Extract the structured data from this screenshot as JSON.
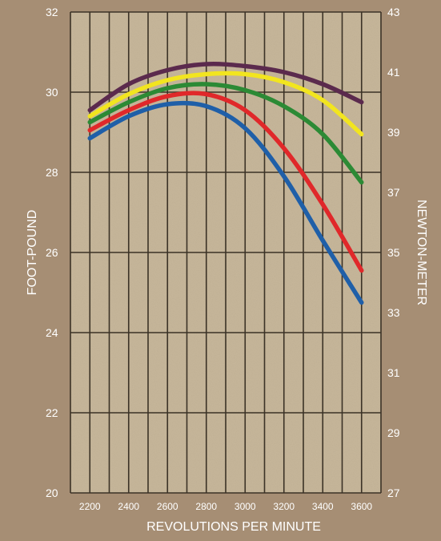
{
  "chart_data": {
    "type": "line",
    "title": "",
    "xlabel": "REVOLUTIONS PER MINUTE",
    "ylabel": "FOOT-POUND",
    "y2label": "NEWTON-METER",
    "xlim": [
      2100,
      3700
    ],
    "ylim": [
      20,
      32
    ],
    "y2lim": [
      27,
      43
    ],
    "x_ticks": [
      2200,
      2400,
      2600,
      2800,
      3000,
      3200,
      3400,
      3600
    ],
    "y_ticks": [
      20,
      22,
      24,
      26,
      28,
      30,
      32
    ],
    "y2_ticks": [
      27,
      29,
      31,
      33,
      35,
      37,
      39,
      41,
      43
    ],
    "grid": true,
    "background_color": "#c7b79b",
    "series": [
      {
        "color": "#5b2a4d",
        "x": [
          2200,
          2400,
          2600,
          2800,
          3000,
          3200,
          3400,
          3600
        ],
        "y": [
          29.55,
          30.2,
          30.55,
          30.7,
          30.65,
          30.5,
          30.2,
          29.75
        ]
      },
      {
        "color": "#f2e51f",
        "x": [
          2200,
          2400,
          2600,
          2800,
          3000,
          3200,
          3400,
          3600
        ],
        "y": [
          29.4,
          29.95,
          30.3,
          30.45,
          30.45,
          30.25,
          29.8,
          28.95
        ]
      },
      {
        "color": "#2c8a35",
        "x": [
          2200,
          2400,
          2600,
          2800,
          3000,
          3200,
          3400,
          3600
        ],
        "y": [
          29.25,
          29.75,
          30.1,
          30.2,
          30.05,
          29.65,
          28.95,
          27.75
        ]
      },
      {
        "color": "#e0282a",
        "x": [
          2200,
          2400,
          2600,
          2800,
          3000,
          3200,
          3400,
          3600
        ],
        "y": [
          29.05,
          29.55,
          29.9,
          29.95,
          29.55,
          28.6,
          27.2,
          25.55
        ]
      },
      {
        "color": "#1f5fa8",
        "x": [
          2200,
          2400,
          2600,
          2800,
          3000,
          3200,
          3400,
          3600
        ],
        "y": [
          28.85,
          29.4,
          29.7,
          29.65,
          29.1,
          27.9,
          26.3,
          24.75
        ]
      }
    ]
  }
}
